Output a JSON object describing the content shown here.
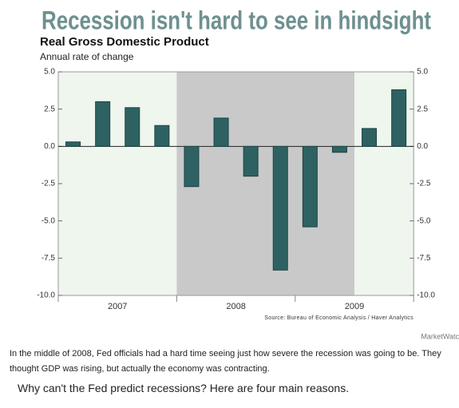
{
  "headline": "Recession isn't hard to see in hindsight",
  "chart_data": {
    "type": "bar",
    "title": "Real Gross Domestic Product",
    "subtitle": "Annual rate of change",
    "categories": [
      null,
      null,
      null,
      null,
      null,
      null,
      null,
      null,
      null,
      null,
      null,
      null
    ],
    "year_labels": [
      "2007",
      "2008",
      "2009"
    ],
    "values": [
      0.3,
      3.0,
      2.6,
      1.4,
      -2.7,
      1.9,
      -2.0,
      -8.3,
      -5.4,
      -0.4,
      1.2,
      3.8
    ],
    "color": "#2e6262",
    "shade_color": "#c9c9c9",
    "shade": [
      4,
      9
    ],
    "ylim": [
      -10,
      5
    ],
    "yticks": [
      {
        "value": 5,
        "label": "5.0"
      },
      {
        "value": 2.5,
        "label": "2.5"
      },
      {
        "value": 0,
        "label": "0.0"
      },
      {
        "value": -2.5,
        "label": "-2.5"
      },
      {
        "value": -5,
        "label": "-5.0"
      },
      {
        "value": -7.5,
        "label": "-7.5"
      },
      {
        "value": -10,
        "label": "-10.0"
      }
    ],
    "source": "Source: Bureau of Economic Analysis / Haver Analytics"
  },
  "credit": "MarketWatc",
  "caption": "In the middle of 2008, Fed officials had a hard time seeing just how severe the recession was going to be. They thought GDP was rising, but actually the economy was contracting.",
  "teaser": "Why can't the Fed predict recessions? Here are four main reasons."
}
